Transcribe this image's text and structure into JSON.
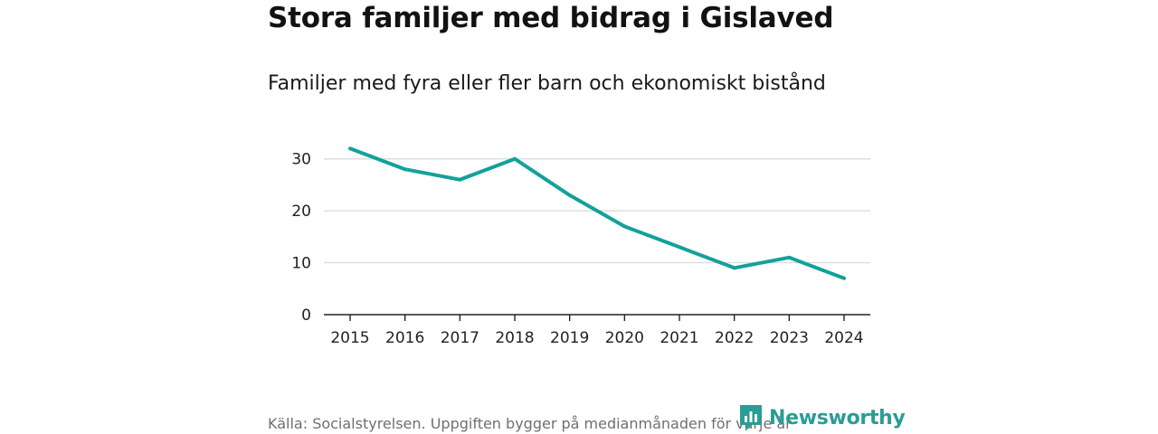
{
  "header": {
    "title": "Stora familjer med bidrag i Gislaved",
    "subtitle": "Familjer med fyra eller fler barn och ekonomiskt bistånd"
  },
  "footer": {
    "source": "Källa: Socialstyrelsen. Uppgiften bygger på medianmånaden för varje år",
    "logo_text": "Newsworthy"
  },
  "colors": {
    "line": "#13a19a",
    "grid": "#d9d9d9",
    "axis": "#222222",
    "logo": "#2a9d94"
  },
  "chart_data": {
    "type": "line",
    "title": "Stora familjer med bidrag i Gislaved",
    "subtitle": "Familjer med fyra eller fler barn och ekonomiskt bistånd",
    "x": [
      "2015",
      "2016",
      "2017",
      "2018",
      "2019",
      "2020",
      "2021",
      "2022",
      "2023",
      "2024"
    ],
    "series": [
      {
        "values": [
          32,
          28,
          26,
          30,
          23,
          17,
          13,
          9,
          11,
          7
        ]
      }
    ],
    "yticks": [
      0,
      10,
      20,
      30
    ],
    "ylim": [
      0,
      35
    ],
    "xlabel": "",
    "ylabel": "",
    "grid": true,
    "legend": "none"
  }
}
